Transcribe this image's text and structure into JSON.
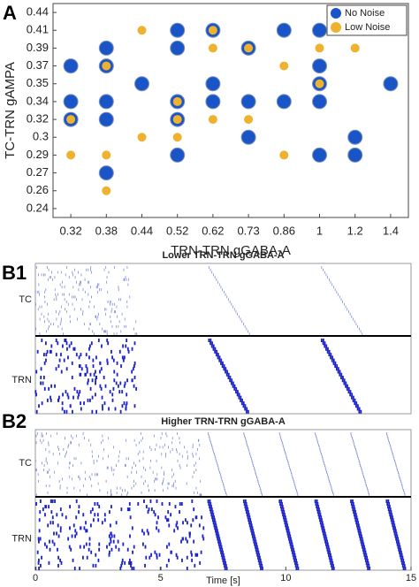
{
  "chart_data": [
    {
      "type": "scatter",
      "panel": "A",
      "xlabel": "TRN-TRN gGABA-A",
      "ylabel": "TC-TRN gAMPA",
      "xscale": "ordinal",
      "yscale": "ordinal",
      "xticks": [
        0.32,
        0.38,
        0.44,
        0.52,
        0.62,
        0.73,
        0.86,
        1,
        1.2,
        1.4
      ],
      "yticks": [
        0.24,
        0.26,
        0.27,
        0.29,
        0.3,
        0.32,
        0.34,
        0.35,
        0.37,
        0.39,
        0.41,
        0.44
      ],
      "legend": "upper right",
      "series": [
        {
          "name": "No Noise",
          "color": "#1a55c8",
          "x": [
            0.32,
            0.38,
            1,
            0.44,
            0.62,
            1,
            1.4,
            0.38,
            0.52,
            0.73,
            0.52,
            0.62,
            0.86,
            1,
            0.32,
            0.38,
            0.52,
            0.62,
            0.73,
            0.86,
            1,
            0.32,
            0.38,
            0.52,
            0.73,
            1.2,
            0.52,
            1,
            1.2,
            0.38
          ],
          "y": [
            0.37,
            0.37,
            0.37,
            0.35,
            0.35,
            0.35,
            0.35,
            0.39,
            0.39,
            0.39,
            0.41,
            0.41,
            0.41,
            0.41,
            0.34,
            0.34,
            0.34,
            0.34,
            0.34,
            0.34,
            0.34,
            0.32,
            0.32,
            0.32,
            0.3,
            0.3,
            0.29,
            0.29,
            0.29,
            0.27
          ]
        },
        {
          "name": "Low Noise",
          "color": "#efb22e",
          "x": [
            0.38,
            0.86,
            1,
            0.62,
            0.73,
            1,
            1.2,
            0.44,
            0.62,
            0.52,
            0.32,
            0.52,
            0.62,
            0.73,
            0.44,
            0.52,
            0.32,
            0.38,
            0.86,
            0.38
          ],
          "y": [
            0.37,
            0.37,
            0.35,
            0.39,
            0.39,
            0.39,
            0.39,
            0.41,
            0.41,
            0.34,
            0.32,
            0.32,
            0.32,
            0.32,
            0.3,
            0.3,
            0.29,
            0.29,
            0.29,
            0.26
          ]
        }
      ]
    },
    {
      "type": "raster",
      "panel": "B1",
      "title": "Lower TRN-TRN gGABA-A",
      "rows": [
        "TC",
        "TRN"
      ]
    },
    {
      "type": "raster",
      "panel": "B2",
      "title": "Higher TRN-TRN gGABA-A",
      "rows": [
        "TC",
        "TRN"
      ],
      "xlabel": "Time [s]",
      "xlim": [
        0,
        15
      ],
      "xticks": [
        0,
        5,
        10,
        15
      ]
    }
  ]
}
